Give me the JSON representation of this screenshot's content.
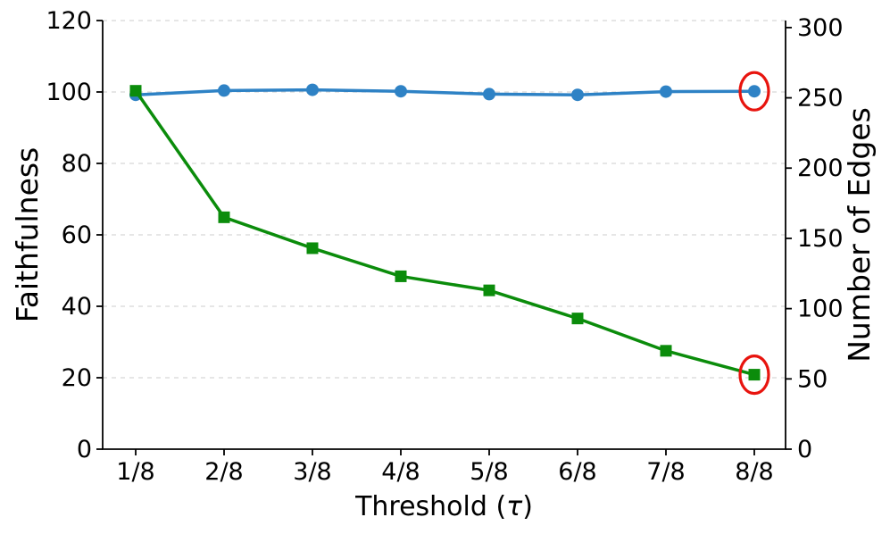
{
  "figure": {
    "background": "#ffffff"
  },
  "chart_data": {
    "type": "line",
    "title": "",
    "x_categories": [
      "1/8",
      "2/8",
      "3/8",
      "4/8",
      "5/8",
      "6/8",
      "7/8",
      "8/8"
    ],
    "xlabel": "Threshold (τ)",
    "xlabel_parts": {
      "prefix": "Threshold (",
      "italic_symbol": "τ",
      "suffix": ")"
    },
    "left_axis": {
      "label": "Faithfulness",
      "color": "#2e82c5",
      "ticks": [
        0,
        20,
        40,
        60,
        80,
        100,
        120
      ],
      "lim": [
        0,
        120
      ]
    },
    "right_axis": {
      "label": "Number of Edges",
      "color": "#0b8c0b",
      "ticks": [
        0,
        50,
        100,
        150,
        200,
        250,
        300
      ],
      "lim": [
        0,
        305
      ]
    },
    "series": [
      {
        "name": "Faithfulness",
        "axis": "left",
        "color": "#2e82c5",
        "marker": "circle",
        "values": [
          99.2,
          100.4,
          100.6,
          100.2,
          99.4,
          99.2,
          100.1,
          100.2
        ]
      },
      {
        "name": "Number of Edges",
        "axis": "right",
        "color": "#0b8c0b",
        "marker": "square",
        "values": [
          255,
          165,
          143,
          123,
          113,
          93,
          70,
          53
        ]
      }
    ],
    "grid": {
      "horizontal": true,
      "style": "dashed",
      "color": "#d7d7d7",
      "on_ticks": "left"
    },
    "annotations": [
      {
        "type": "ellipse-highlight",
        "series": "Faithfulness",
        "x": "8/8",
        "color": "#e8140e"
      },
      {
        "type": "ellipse-highlight",
        "series": "Number of Edges",
        "x": "8/8",
        "color": "#e8140e"
      }
    ]
  }
}
